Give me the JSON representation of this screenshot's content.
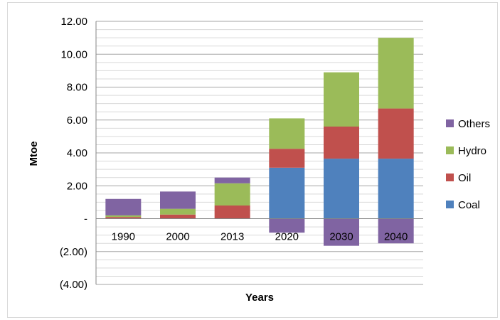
{
  "chart_data": {
    "type": "bar",
    "stacked": true,
    "categories": [
      "1990",
      "2000",
      "2013",
      "2020",
      "2030",
      "2040"
    ],
    "series": [
      {
        "name": "Coal",
        "color": "#4f81bd",
        "values": [
          0,
          0,
          0,
          3.1,
          3.65,
          3.65
        ]
      },
      {
        "name": "Oil",
        "color": "#c0504d",
        "values": [
          0.1,
          0.25,
          0.8,
          1.15,
          1.95,
          3.05
        ]
      },
      {
        "name": "Hydro",
        "color": "#9bbb59",
        "values": [
          0.1,
          0.35,
          1.35,
          1.85,
          3.3,
          4.3
        ]
      },
      {
        "name": "Others",
        "color": "#8064a2",
        "values": [
          1.0,
          1.05,
          0.35,
          -0.85,
          -1.65,
          -1.5
        ]
      }
    ],
    "title": "",
    "xlabel": "Years",
    "ylabel": "Mtoe",
    "ylim": [
      -4,
      12
    ],
    "yticks": [
      -4,
      -2,
      0,
      2,
      4,
      6,
      8,
      10,
      12
    ],
    "ytick_labels": [
      "(4.00)",
      "(2.00)",
      "-",
      "2.00",
      "4.00",
      "6.00",
      "8.00",
      "10.00",
      "12.00"
    ],
    "grid": true,
    "legend_position": "right",
    "legend_order": [
      "Others",
      "Hydro",
      "Oil",
      "Coal"
    ]
  }
}
